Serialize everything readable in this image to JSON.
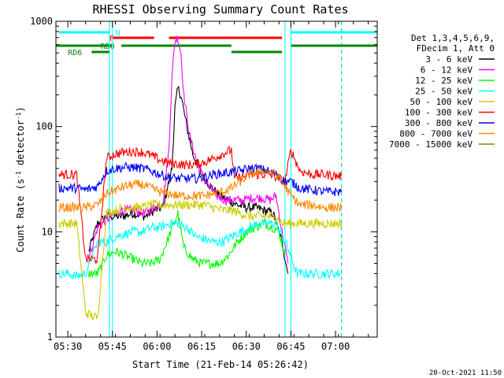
{
  "chart_data": {
    "type": "line",
    "title": "RHESSI Observing Summary Count Rates",
    "xlabel": "Start Time (21-Feb-14 05:26:42)",
    "ylabel": "Count Rate (s-1 detector-1)",
    "ylabel_parts": [
      "Count Rate (s",
      "-1",
      " detector",
      "-1",
      ")"
    ],
    "yscale": "log",
    "ylim": [
      1,
      1000
    ],
    "xlim": [
      "05:26",
      "07:14"
    ],
    "x_ticks": [
      "05:30",
      "05:45",
      "06:00",
      "06:15",
      "06:30",
      "06:45",
      "07:00"
    ],
    "y_ticks": [
      "1",
      "10",
      "100",
      "1000"
    ],
    "legend_header": [
      "Det 1,3,4,5,6,9,",
      "FDecim 1, Att 0"
    ],
    "legend_position": "right",
    "timestamp": "20-Oct-2021 11:50",
    "bands": [
      {
        "name": "3 - 6 keV",
        "color": "#000000"
      },
      {
        "name": "6 - 12 keV",
        "color": "#ff00ff"
      },
      {
        "name": "12 - 25 keV",
        "color": "#00ff00"
      },
      {
        "name": "25 - 50 keV",
        "color": "#00ffff"
      },
      {
        "name": "50 - 100 keV",
        "color": "#cccc00"
      },
      {
        "name": "100 - 300 keV",
        "color": "#ff0000"
      },
      {
        "name": "300 - 800 keV",
        "color": "#0000ff"
      },
      {
        "name": "800 - 7000 keV",
        "color": "#ff8800"
      },
      {
        "name": "7000 - 15000 keV",
        "color": "#888800"
      }
    ],
    "flags": [
      {
        "label": "N",
        "color": "#00ffff",
        "segments": [
          [
            "05:27",
            "05:44"
          ],
          [
            "06:45",
            "07:14"
          ]
        ]
      },
      {
        "label": "F",
        "color": "#ff0000",
        "segments": [
          [
            "05:45",
            "05:59"
          ],
          [
            "06:04",
            "06:42"
          ]
        ]
      },
      {
        "label": "RD0",
        "color": "#008800",
        "segments": [
          [
            "05:26",
            "05:45"
          ],
          [
            "05:48",
            "06:25"
          ],
          [
            "06:45",
            "07:14"
          ]
        ]
      },
      {
        "label": "RD6",
        "color": "#008800",
        "segments": [
          [
            "05:38",
            "05:44"
          ],
          [
            "06:25",
            "06:42"
          ]
        ]
      }
    ],
    "night_boundaries": [
      "05:44",
      "06:45",
      "07:02"
    ],
    "data_gaps": [
      [
        "05:44",
        "05:45"
      ],
      [
        "06:43",
        "06:45"
      ]
    ],
    "series": [
      {
        "name": "3 - 6 keV",
        "color": "#000000",
        "points": [
          [
            "05:37",
            "6.5"
          ],
          [
            "05:40",
            "12"
          ],
          [
            "05:43",
            "14"
          ],
          [
            "05:48",
            "14"
          ],
          [
            "05:52",
            "15"
          ],
          [
            "05:56",
            "14"
          ],
          [
            "05:59",
            "16"
          ],
          [
            "06:02",
            "17"
          ],
          [
            "06:05",
            "40"
          ],
          [
            "06:06",
            "150"
          ],
          [
            "06:07",
            "230"
          ],
          [
            "06:08",
            "200"
          ],
          [
            "06:10",
            "100"
          ],
          [
            "06:12",
            "55"
          ],
          [
            "06:15",
            "35"
          ],
          [
            "06:18",
            "27"
          ],
          [
            "06:21",
            "22"
          ],
          [
            "06:24",
            "20"
          ],
          [
            "06:27",
            "18"
          ],
          [
            "06:30",
            "17"
          ],
          [
            "06:33",
            "17"
          ],
          [
            "06:36",
            "16"
          ],
          [
            "06:39",
            "15"
          ],
          [
            "06:42",
            "8"
          ],
          [
            "06:44",
            "4"
          ]
        ]
      },
      {
        "name": "6 - 12 keV",
        "color": "#ff00ff",
        "points": [
          [
            "05:37",
            "5.5"
          ],
          [
            "05:40",
            "11"
          ],
          [
            "05:43",
            "13"
          ],
          [
            "05:48",
            "16"
          ],
          [
            "05:52",
            "16"
          ],
          [
            "05:56",
            "15"
          ],
          [
            "05:59",
            "17"
          ],
          [
            "06:02",
            "19"
          ],
          [
            "06:04",
            "60"
          ],
          [
            "06:05",
            "300"
          ],
          [
            "06:06",
            "650"
          ],
          [
            "06:07",
            "700"
          ],
          [
            "06:08",
            "500"
          ],
          [
            "06:09",
            "200"
          ],
          [
            "06:11",
            "80"
          ],
          [
            "06:14",
            "40"
          ],
          [
            "06:17",
            "28"
          ],
          [
            "06:20",
            "22"
          ],
          [
            "06:23",
            "20"
          ],
          [
            "06:26",
            "20"
          ],
          [
            "06:29",
            "20"
          ],
          [
            "06:32",
            "21"
          ],
          [
            "06:35",
            "21"
          ],
          [
            "06:38",
            "20"
          ],
          [
            "06:40",
            "22"
          ],
          [
            "06:42",
            "10"
          ],
          [
            "06:44",
            "5"
          ]
        ]
      },
      {
        "name": "12 - 25 keV",
        "color": "#00ff00",
        "points": [
          [
            "05:37",
            "4"
          ],
          [
            "05:40",
            "4"
          ],
          [
            "05:43",
            "6"
          ],
          [
            "05:46",
            "6.5"
          ],
          [
            "05:49",
            "6"
          ],
          [
            "05:52",
            "5.5"
          ],
          [
            "05:55",
            "5"
          ],
          [
            "05:58",
            "5"
          ],
          [
            "06:01",
            "5.5"
          ],
          [
            "06:04",
            "9"
          ],
          [
            "06:07",
            "15"
          ],
          [
            "06:09",
            "7"
          ],
          [
            "06:12",
            "5.5"
          ],
          [
            "06:15",
            "5"
          ],
          [
            "06:18",
            "5"
          ],
          [
            "06:21",
            "5"
          ],
          [
            "06:24",
            "6"
          ],
          [
            "06:27",
            "8"
          ],
          [
            "06:30",
            "10"
          ],
          [
            "06:33",
            "11"
          ],
          [
            "06:36",
            "12"
          ],
          [
            "06:39",
            "11"
          ],
          [
            "06:41",
            "10"
          ],
          [
            "06:43",
            "6"
          ]
        ]
      },
      {
        "name": "25 - 50 keV",
        "color": "#00ffff",
        "points": [
          [
            "05:27",
            "4"
          ],
          [
            "05:30",
            "4"
          ],
          [
            "05:33",
            "3.8"
          ],
          [
            "05:36",
            "4"
          ],
          [
            "05:40",
            "8"
          ],
          [
            "05:43",
            "8"
          ],
          [
            "05:46",
            "9"
          ],
          [
            "05:49",
            "9.5"
          ],
          [
            "05:52",
            "10"
          ],
          [
            "05:55",
            "10"
          ],
          [
            "05:58",
            "11"
          ],
          [
            "06:01",
            "11"
          ],
          [
            "06:04",
            "12"
          ],
          [
            "06:07",
            "12"
          ],
          [
            "06:10",
            "11"
          ],
          [
            "06:13",
            "9"
          ],
          [
            "06:16",
            "8.5"
          ],
          [
            "06:19",
            "8"
          ],
          [
            "06:22",
            "8"
          ],
          [
            "06:25",
            "9"
          ],
          [
            "06:28",
            "10"
          ],
          [
            "06:31",
            "11"
          ],
          [
            "06:34",
            "12"
          ],
          [
            "06:37",
            "12"
          ],
          [
            "06:40",
            "12"
          ],
          [
            "06:42",
            "9"
          ],
          [
            "06:44",
            "7"
          ],
          [
            "06:47",
            "4"
          ],
          [
            "06:52",
            "4"
          ],
          [
            "06:57",
            "4"
          ],
          [
            "07:02",
            "4"
          ]
        ]
      },
      {
        "name": "50 - 100 keV",
        "color": "#cccc00",
        "points": [
          [
            "05:27",
            "12"
          ],
          [
            "05:30",
            "12"
          ],
          [
            "05:33",
            "12"
          ],
          [
            "05:36",
            "1.7"
          ],
          [
            "05:40",
            "1.5"
          ],
          [
            "05:43",
            "15"
          ],
          [
            "05:46",
            "16"
          ],
          [
            "05:49",
            "17"
          ],
          [
            "05:52",
            "17"
          ],
          [
            "05:55",
            "17"
          ],
          [
            "05:58",
            "18"
          ],
          [
            "06:01",
            "18"
          ],
          [
            "06:04",
            "18"
          ],
          [
            "06:07",
            "18"
          ],
          [
            "06:10",
            "18"
          ],
          [
            "06:13",
            "18"
          ],
          [
            "06:16",
            "18"
          ],
          [
            "06:19",
            "17"
          ],
          [
            "06:22",
            "16"
          ],
          [
            "06:25",
            "16"
          ],
          [
            "06:28",
            "15"
          ],
          [
            "06:31",
            "14"
          ],
          [
            "06:34",
            "14"
          ],
          [
            "06:37",
            "14"
          ],
          [
            "06:40",
            "14"
          ],
          [
            "06:42",
            "12"
          ],
          [
            "06:45",
            "12"
          ],
          [
            "06:48",
            "12"
          ],
          [
            "06:52",
            "12"
          ],
          [
            "06:56",
            "12"
          ],
          [
            "07:00",
            "12"
          ],
          [
            "07:02",
            "12"
          ]
        ]
      },
      {
        "name": "100 - 300 keV",
        "color": "#ff0000",
        "points": [
          [
            "05:27",
            "35"
          ],
          [
            "05:30",
            "35"
          ],
          [
            "05:33",
            "35"
          ],
          [
            "05:36",
            "5.5"
          ],
          [
            "05:40",
            "5.5"
          ],
          [
            "05:43",
            "50"
          ],
          [
            "05:46",
            "55"
          ],
          [
            "05:49",
            "57"
          ],
          [
            "05:52",
            "58"
          ],
          [
            "05:55",
            "57"
          ],
          [
            "05:58",
            "53"
          ],
          [
            "06:01",
            "48"
          ],
          [
            "06:04",
            "45"
          ],
          [
            "06:07",
            "44"
          ],
          [
            "06:10",
            "43"
          ],
          [
            "06:13",
            "44"
          ],
          [
            "06:16",
            "46"
          ],
          [
            "06:19",
            "50"
          ],
          [
            "06:22",
            "55"
          ],
          [
            "06:25",
            "60"
          ],
          [
            "06:26",
            "32"
          ],
          [
            "06:29",
            "33"
          ],
          [
            "06:32",
            "35"
          ],
          [
            "06:35",
            "35"
          ],
          [
            "06:38",
            "35"
          ],
          [
            "06:41",
            "32"
          ],
          [
            "06:43",
            "30"
          ],
          [
            "06:45",
            "60"
          ],
          [
            "06:48",
            "38"
          ],
          [
            "06:52",
            "35"
          ],
          [
            "06:56",
            "35"
          ],
          [
            "07:00",
            "34"
          ],
          [
            "07:02",
            "34"
          ]
        ]
      },
      {
        "name": "300 - 800 keV",
        "color": "#0000ff",
        "points": [
          [
            "05:27",
            "26"
          ],
          [
            "05:30",
            "26"
          ],
          [
            "05:33",
            "26"
          ],
          [
            "05:36",
            "25"
          ],
          [
            "05:40",
            "27"
          ],
          [
            "05:43",
            "38"
          ],
          [
            "05:46",
            "40"
          ],
          [
            "05:49",
            "41"
          ],
          [
            "05:52",
            "41"
          ],
          [
            "05:55",
            "40"
          ],
          [
            "05:58",
            "38"
          ],
          [
            "06:01",
            "35"
          ],
          [
            "06:04",
            "33"
          ],
          [
            "06:07",
            "32"
          ],
          [
            "06:10",
            "32"
          ],
          [
            "06:13",
            "32"
          ],
          [
            "06:16",
            "33"
          ],
          [
            "06:19",
            "35"
          ],
          [
            "06:22",
            "36"
          ],
          [
            "06:25",
            "37"
          ],
          [
            "06:28",
            "38"
          ],
          [
            "06:31",
            "40"
          ],
          [
            "06:34",
            "40"
          ],
          [
            "06:37",
            "38"
          ],
          [
            "06:40",
            "35"
          ],
          [
            "06:43",
            "30"
          ],
          [
            "06:45",
            "30"
          ],
          [
            "06:48",
            "26"
          ],
          [
            "06:52",
            "25"
          ],
          [
            "06:56",
            "24"
          ],
          [
            "07:00",
            "24"
          ],
          [
            "07:02",
            "24"
          ]
        ]
      },
      {
        "name": "800 - 7000 keV",
        "color": "#ff8800",
        "points": [
          [
            "05:27",
            "17"
          ],
          [
            "05:30",
            "17"
          ],
          [
            "05:33",
            "17"
          ],
          [
            "05:36",
            "17"
          ],
          [
            "05:40",
            "18"
          ],
          [
            "05:43",
            "23"
          ],
          [
            "05:46",
            "25"
          ],
          [
            "05:49",
            "27"
          ],
          [
            "05:52",
            "28"
          ],
          [
            "05:55",
            "28"
          ],
          [
            "05:58",
            "26"
          ],
          [
            "06:01",
            "24"
          ],
          [
            "06:04",
            "23"
          ],
          [
            "06:07",
            "22"
          ],
          [
            "06:10",
            "22"
          ],
          [
            "06:13",
            "22"
          ],
          [
            "06:16",
            "22"
          ],
          [
            "06:19",
            "23"
          ],
          [
            "06:22",
            "24"
          ],
          [
            "06:25",
            "26"
          ],
          [
            "06:28",
            "30"
          ],
          [
            "06:31",
            "35"
          ],
          [
            "06:34",
            "37"
          ],
          [
            "06:37",
            "38"
          ],
          [
            "06:40",
            "35"
          ],
          [
            "06:42",
            "30"
          ],
          [
            "06:45",
            "22"
          ],
          [
            "06:48",
            "18"
          ],
          [
            "06:52",
            "18"
          ],
          [
            "06:56",
            "17"
          ],
          [
            "07:00",
            "17"
          ],
          [
            "07:02",
            "17"
          ]
        ]
      },
      {
        "name": "7000 - 15000 keV",
        "color": "#888800",
        "points": []
      }
    ]
  }
}
